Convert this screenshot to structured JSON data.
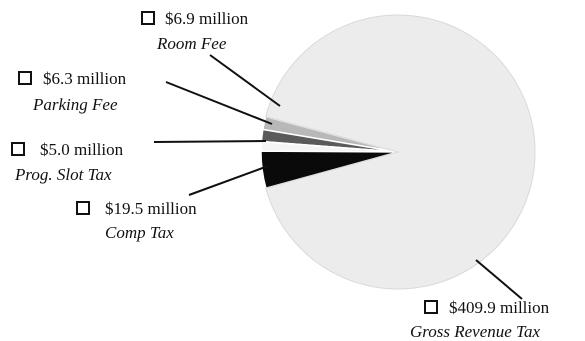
{
  "chart_data": {
    "type": "pie",
    "title": "",
    "unit": "million",
    "slices": [
      {
        "name": "Room Fee",
        "value": 6.9,
        "amount_label": "$6.9 million",
        "color": "#b8b8b8"
      },
      {
        "name": "Parking Fee",
        "value": 6.3,
        "amount_label": "$6.3 million",
        "color": "#5a5a5a"
      },
      {
        "name": "Prog. Slot Tax",
        "value": 5.0,
        "amount_label": "$5.0 million",
        "color": "#f4f4f4"
      },
      {
        "name": "Comp Tax",
        "value": 19.5,
        "amount_label": "$19.5 million",
        "color": "#0a0a0a"
      },
      {
        "name": "Gross Revenue Tax",
        "value": 409.9,
        "amount_label": "$409.9 million",
        "color": "#ececec"
      }
    ]
  }
}
